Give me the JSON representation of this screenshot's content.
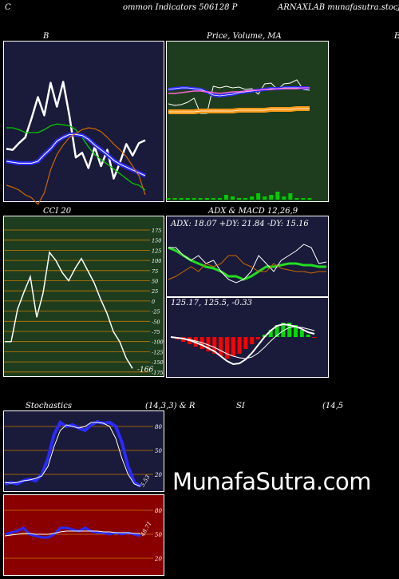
{
  "header": {
    "left": "C",
    "middle": "ommon  Indicators 506128  P",
    "right": "ARNAXLAB munafasutra.stocjar.com"
  },
  "panels": {
    "bb": {
      "title": "B"
    },
    "price": {
      "title": "Price,  Volume,  MA",
      "edge_label": "E"
    },
    "cci": {
      "title": "CCI 20"
    },
    "adx": {
      "title": "ADX  & MACD 12,26,9",
      "readout": "ADX: 18.07  +DY: 21.84  -DY: 15.16"
    },
    "macd": {
      "readout": "125.17,  125.5,  -0.33"
    },
    "stoch": {
      "title_left": "Stochastics",
      "title_mid": "(14,3,3) & R",
      "title_si": "SI",
      "title_right": "(14,5"
    }
  },
  "watermark": "MunafaSutra.com",
  "colors": {
    "bb_bg": "#1a1a3a",
    "price_bg": "#1e3d1e",
    "cci_bg": "#1e3d1e",
    "adx_bg": "#1a1a3a",
    "stoch_bg": "#1a1a3a",
    "rsi_bg": "#8a0000",
    "blue": "#2a2aff",
    "green": "#00cc00",
    "orange": "#cc6a00",
    "grid": "#c87a00"
  },
  "chart_data": [
    {
      "type": "line",
      "name": "bollinger",
      "series": [
        {
          "name": "price",
          "values": [
            112,
            113,
            106,
            100,
            80,
            58,
            77,
            43,
            68,
            42,
            78,
            121,
            116,
            132,
            110,
            130,
            113,
            143,
            126,
            107,
            119,
            106,
            103
          ]
        },
        {
          "name": "upper",
          "values": [
            90,
            90,
            92,
            95,
            95,
            95,
            92,
            88,
            86,
            87,
            88,
            92,
            100,
            110,
            118,
            123,
            128,
            133,
            138,
            143,
            148,
            150,
            155
          ]
        },
        {
          "name": "middle",
          "values": [
            125,
            126,
            127,
            127,
            127,
            125,
            118,
            112,
            104,
            100,
            97,
            97,
            98,
            102,
            108,
            113,
            118,
            124,
            128,
            131,
            134,
            137,
            140
          ]
        },
        {
          "name": "lower",
          "values": [
            150,
            152,
            155,
            160,
            163,
            170,
            158,
            134,
            118,
            108,
            100,
            96,
            92,
            90,
            91,
            94,
            100,
            107,
            113,
            120,
            130,
            140,
            160
          ]
        }
      ]
    },
    {
      "type": "line",
      "name": "price_ma",
      "series": [
        {
          "name": "price",
          "values": [
            120,
            118,
            119,
            122,
            127,
            108,
            108,
            142,
            140,
            142,
            140,
            141,
            138,
            139,
            132,
            145,
            146,
            138,
            145,
            146,
            150,
            138,
            137
          ]
        },
        {
          "name": "ma_fast",
          "values": [
            138,
            139,
            140,
            140,
            139,
            138,
            135,
            131,
            130,
            131,
            132,
            134,
            135,
            136,
            137,
            138,
            139,
            139,
            140,
            140,
            140,
            140,
            140
          ]
        },
        {
          "name": "ma_mid",
          "values": [
            133,
            133,
            134,
            135,
            136,
            136,
            135,
            134,
            133,
            134,
            135,
            135,
            136,
            137,
            137,
            138,
            138,
            139,
            139,
            139,
            139,
            140,
            140
          ]
        },
        {
          "name": "ma_slow",
          "values": [
            110,
            110,
            110,
            110,
            110,
            111,
            111,
            111,
            111,
            111,
            111,
            112,
            112,
            112,
            112,
            112,
            113,
            113,
            113,
            113,
            114,
            114,
            114
          ]
        }
      ],
      "volume": [
        1,
        1,
        1,
        1,
        1,
        1,
        1,
        1,
        1,
        3,
        2,
        1,
        1,
        2,
        4,
        2,
        3,
        5,
        2,
        4,
        1,
        1,
        1
      ]
    },
    {
      "type": "line",
      "name": "cci",
      "x": [
        0,
        1,
        2,
        3,
        4,
        5,
        6,
        7,
        8,
        9,
        10,
        11,
        12,
        13,
        14,
        15,
        16,
        17,
        18,
        19,
        20
      ],
      "values": [
        -100,
        -100,
        -20,
        22,
        60,
        -40,
        20,
        120,
        100,
        70,
        50,
        80,
        105,
        75,
        45,
        5,
        -30,
        -75,
        -100,
        -140,
        -166
      ],
      "ticks": [
        "175",
        "150",
        "125",
        "100",
        "75",
        "50",
        "25",
        "0",
        "-25",
        "-50",
        "-75",
        "-100",
        "-125",
        "-150",
        "-175"
      ],
      "last_label": "-166"
    },
    {
      "type": "line",
      "name": "adx",
      "series": [
        {
          "name": "adx",
          "values": [
            30,
            28,
            25,
            22,
            20,
            18,
            17,
            15,
            12,
            12,
            10,
            12,
            15,
            18,
            18,
            19,
            20,
            20,
            19,
            19,
            18,
            18
          ]
        },
        {
          "name": "plus_di",
          "values": [
            30,
            30,
            25,
            22,
            25,
            20,
            22,
            15,
            10,
            8,
            10,
            15,
            25,
            20,
            15,
            22,
            25,
            28,
            32,
            30,
            20,
            21
          ]
        },
        {
          "name": "minus_di",
          "values": [
            10,
            12,
            15,
            18,
            15,
            20,
            18,
            20,
            25,
            25,
            20,
            18,
            15,
            15,
            20,
            17,
            16,
            15,
            15,
            14,
            15,
            15
          ]
        }
      ]
    },
    {
      "type": "bar",
      "name": "macd",
      "histogram": [
        0,
        -1,
        -2,
        -3,
        -4,
        -5,
        -6,
        -7,
        -8,
        -9,
        -8,
        -7,
        -5,
        -3,
        -1,
        1,
        3,
        5,
        6,
        6,
        5,
        3,
        1,
        -0.33
      ],
      "series": [
        {
          "name": "macd",
          "values": [
            0,
            -1,
            -2,
            -4,
            -7,
            -10,
            -14,
            -18,
            -24,
            -30,
            -34,
            -33,
            -28,
            -20,
            -10,
            0,
            8,
            14,
            16,
            15,
            13,
            10,
            6,
            4
          ]
        },
        {
          "name": "signal",
          "values": [
            0,
            -1,
            -2,
            -3,
            -5,
            -7,
            -10,
            -13,
            -17,
            -21,
            -24,
            -26,
            -27,
            -25,
            -20,
            -13,
            -5,
            2,
            8,
            12,
            13,
            12,
            10,
            8
          ]
        }
      ]
    },
    {
      "type": "line",
      "name": "stochastic",
      "series": [
        {
          "name": "k",
          "values": [
            8,
            10,
            8,
            12,
            14,
            12,
            20,
            40,
            70,
            85,
            80,
            82,
            78,
            75,
            82,
            86,
            84,
            85,
            80,
            60,
            30,
            10,
            5
          ]
        },
        {
          "name": "d",
          "values": [
            10,
            9,
            10,
            12,
            13,
            15,
            18,
            30,
            55,
            75,
            82,
            80,
            78,
            80,
            85,
            85,
            84,
            80,
            65,
            40,
            20,
            8,
            5
          ]
        }
      ],
      "ticks": [
        "80",
        "50",
        "20"
      ],
      "last_label": "5.53"
    },
    {
      "type": "line",
      "name": "rsi",
      "series": [
        {
          "name": "rsi",
          "values": [
            50,
            52,
            54,
            58,
            50,
            48,
            46,
            46,
            50,
            58,
            58,
            56,
            54,
            58,
            54,
            52,
            52,
            50,
            52,
            50,
            52,
            50,
            48
          ]
        },
        {
          "name": "rsi_smooth",
          "values": [
            48,
            49,
            50,
            51,
            51,
            50,
            50,
            50,
            51,
            53,
            54,
            54,
            54,
            54,
            54,
            54,
            53,
            53,
            52,
            52,
            52,
            51,
            51
          ]
        }
      ],
      "ticks": [
        "80",
        "50",
        "20"
      ],
      "last_label": "48.71"
    }
  ]
}
